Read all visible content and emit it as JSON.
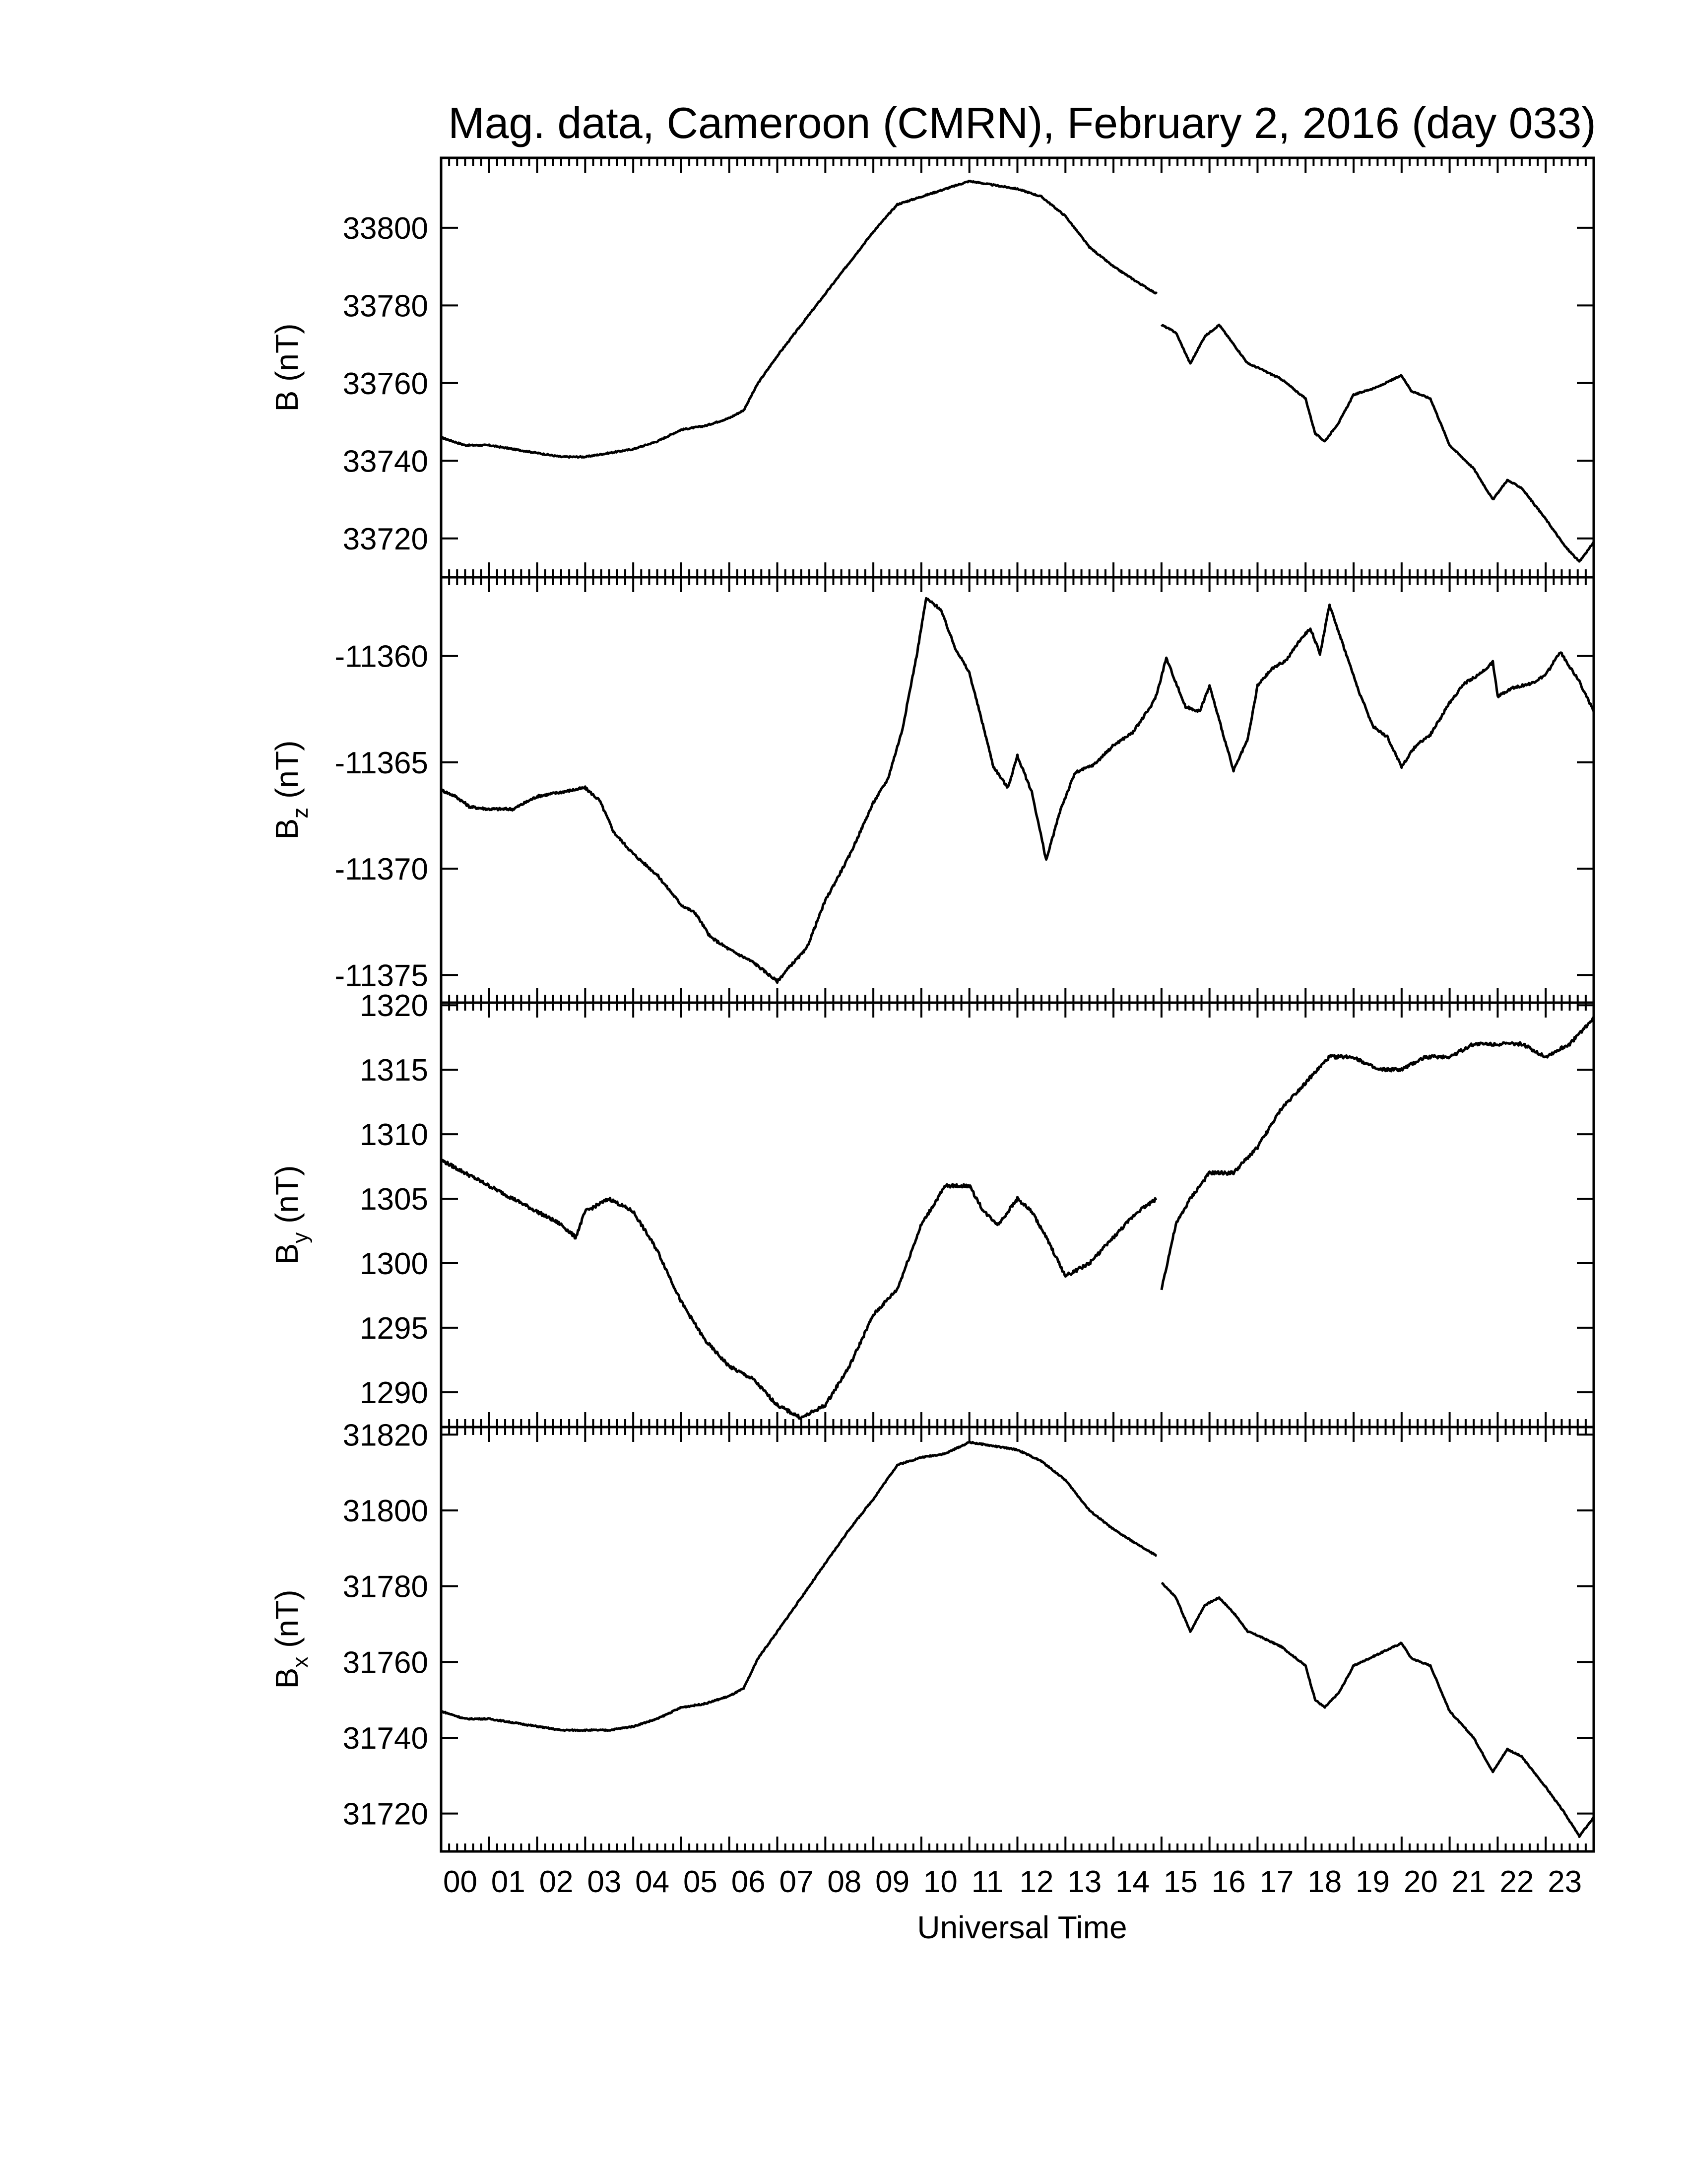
{
  "title": "Mag. data, Cameroon (CMRN), February 2, 2016 (day 033)",
  "xlabel": "Universal Time",
  "x_ticks": [
    "00",
    "01",
    "02",
    "03",
    "04",
    "05",
    "06",
    "07",
    "08",
    "09",
    "10",
    "11",
    "12",
    "13",
    "14",
    "15",
    "16",
    "17",
    "18",
    "19",
    "20",
    "21",
    "22",
    "23"
  ],
  "chart_data": [
    {
      "type": "line",
      "ylabel": "B (nT)",
      "ylabel_main": "B",
      "ylabel_sub": "",
      "ylabel_unit": " (nT)",
      "ylim": [
        33710,
        33818
      ],
      "yticks": [
        33720,
        33740,
        33760,
        33780,
        33800
      ],
      "gap_at_hour": 14.9,
      "x": [
        0,
        0.5,
        1,
        1.5,
        2,
        2.5,
        3,
        3.5,
        4,
        4.5,
        5,
        5.5,
        6,
        6.3,
        6.6,
        7,
        7.5,
        8,
        8.5,
        9,
        9.5,
        10,
        10.5,
        11,
        11.5,
        12,
        12.5,
        13,
        13.5,
        14,
        14.5,
        14.9,
        15,
        15.3,
        15.6,
        15.9,
        16.2,
        16.5,
        16.8,
        17,
        17.5,
        18,
        18.2,
        18.4,
        18.7,
        19,
        19.5,
        20,
        20.2,
        20.6,
        21,
        21.5,
        21.9,
        22.2,
        22.5,
        23,
        23.4,
        23.7,
        24
      ],
      "values": [
        33746,
        33744,
        33744,
        33743,
        33742,
        33741,
        33741,
        33742,
        33743,
        33745,
        33748,
        33749,
        33751,
        33753,
        33760,
        33767,
        33775,
        33783,
        33791,
        33799,
        33806,
        33808,
        33810,
        33812,
        33811,
        33810,
        33808,
        33803,
        33795,
        33790,
        33786,
        33783,
        33775,
        33773,
        33765,
        33772,
        33775,
        33770,
        33765,
        33764,
        33761,
        33756,
        33747,
        33745,
        33750,
        33757,
        33759,
        33762,
        33758,
        33756,
        33744,
        33738,
        33730,
        33735,
        33733,
        33725,
        33718,
        33714,
        33719
      ]
    },
    {
      "type": "line",
      "ylabel": "Bz (nT)",
      "ylabel_main": "B",
      "ylabel_sub": "z",
      "ylabel_unit": " (nT)",
      "ylim": [
        -11376.3,
        -11356.3
      ],
      "yticks": [
        -11375,
        -11370,
        -11365,
        -11360
      ],
      "x": [
        0,
        0.3,
        0.6,
        1,
        1.5,
        2,
        2.5,
        3,
        3.3,
        3.6,
        4,
        4.5,
        5,
        5.3,
        5.6,
        6,
        6.5,
        7,
        7.3,
        7.6,
        8,
        8.5,
        9,
        9.3,
        9.6,
        9.9,
        10.1,
        10.4,
        10.7,
        11,
        11.3,
        11.5,
        11.8,
        12,
        12.3,
        12.6,
        12.9,
        13.2,
        13.6,
        14,
        14.4,
        14.8,
        14.9,
        15.1,
        15.5,
        15.8,
        16,
        16.3,
        16.5,
        16.8,
        17,
        17.3,
        17.6,
        17.9,
        18.1,
        18.3,
        18.5,
        18.8,
        19.1,
        19.4,
        19.7,
        20,
        20.3,
        20.6,
        21,
        21.3,
        21.6,
        21.9,
        22,
        22.3,
        22.7,
        23,
        23.3,
        23.7,
        24
      ],
      "values": [
        -11366.3,
        -11366.6,
        -11367.1,
        -11367.2,
        -11367.2,
        -11366.6,
        -11366.4,
        -11366.2,
        -11366.8,
        -11368.3,
        -11369.3,
        -11370.3,
        -11371.7,
        -11372.1,
        -11373.2,
        -11373.8,
        -11374.4,
        -11375.3,
        -11374.5,
        -11373.8,
        -11371.5,
        -11369.4,
        -11366.9,
        -11365.8,
        -11363.5,
        -11360.0,
        -11357.3,
        -11357.8,
        -11359.6,
        -11360.8,
        -11363.4,
        -11365.2,
        -11366.2,
        -11364.7,
        -11366.4,
        -11369.6,
        -11367.2,
        -11365.5,
        -11365.1,
        -11364.2,
        -11363.6,
        -11362.3,
        -11361.8,
        -11360.1,
        -11362.4,
        -11362.6,
        -11361.4,
        -11363.8,
        -11365.4,
        -11363.9,
        -11361.4,
        -11360.6,
        -11360.2,
        -11359.2,
        -11358.7,
        -11359.9,
        -11357.6,
        -11359.6,
        -11361.6,
        -11363.3,
        -11363.8,
        -11365.2,
        -11364.2,
        -11363.7,
        -11362.2,
        -11361.3,
        -11360.9,
        -11360.3,
        -11361.9,
        -11361.5,
        -11361.3,
        -11360.9,
        -11359.8,
        -11361.2,
        -11362.6
      ]
    },
    {
      "type": "line",
      "ylabel": "By (nT)",
      "ylabel_main": "B",
      "ylabel_sub": "y",
      "ylabel_unit": " (nT)",
      "ylim": [
        1287.3,
        1320.2
      ],
      "yticks": [
        1290,
        1295,
        1300,
        1305,
        1310,
        1315,
        1320
      ],
      "gap_at_hour": 14.9,
      "x": [
        0,
        0.5,
        1,
        1.5,
        2,
        2.5,
        2.8,
        3,
        3.5,
        4,
        4.5,
        5,
        5.5,
        6,
        6.5,
        7,
        7.5,
        8,
        8.5,
        9,
        9.5,
        10,
        10.5,
        11,
        11.3,
        11.6,
        12,
        12.3,
        12.6,
        13,
        13.5,
        14,
        14.5,
        14.9,
        15,
        15.3,
        15.6,
        16,
        16.5,
        17,
        17.5,
        18,
        18.5,
        19,
        19.5,
        20,
        20.5,
        21,
        21.5,
        22,
        22.5,
        23,
        23.5,
        24
      ],
      "values": [
        1308,
        1307,
        1306,
        1305,
        1304,
        1303,
        1302,
        1304,
        1305,
        1304,
        1301,
        1297,
        1294,
        1292,
        1291,
        1289,
        1288,
        1289,
        1292,
        1296,
        1298,
        1303,
        1306,
        1306,
        1304,
        1303,
        1305,
        1304,
        1302,
        1299,
        1300,
        1302,
        1304,
        1305,
        1298,
        1303,
        1305,
        1307,
        1307,
        1309,
        1312,
        1314,
        1316,
        1316,
        1315,
        1315,
        1316,
        1316,
        1317,
        1317,
        1317,
        1316,
        1317,
        1319
      ]
    },
    {
      "type": "line",
      "ylabel": "Bx (nT)",
      "ylabel_main": "B",
      "ylabel_sub": "x",
      "ylabel_unit": " (nT)",
      "ylim": [
        31710,
        31822
      ],
      "yticks": [
        31720,
        31740,
        31760,
        31780,
        31800,
        31820
      ],
      "gap_at_hour": 14.9,
      "x": [
        0,
        0.5,
        1,
        1.5,
        2,
        2.5,
        3,
        3.5,
        4,
        4.5,
        5,
        5.5,
        6,
        6.3,
        6.6,
        7,
        7.5,
        8,
        8.5,
        9,
        9.5,
        10,
        10.5,
        11,
        11.5,
        12,
        12.5,
        13,
        13.5,
        14,
        14.5,
        14.9,
        15,
        15.3,
        15.6,
        15.9,
        16.2,
        16.5,
        16.8,
        17,
        17.5,
        18,
        18.2,
        18.4,
        18.7,
        19,
        19.5,
        20,
        20.2,
        20.6,
        21,
        21.5,
        21.9,
        22.2,
        22.5,
        23,
        23.4,
        23.7,
        24
      ],
      "values": [
        31747,
        31745,
        31745,
        31744,
        31743,
        31742,
        31742,
        31742,
        31743,
        31745,
        31748,
        31749,
        31751,
        31753,
        31761,
        31768,
        31777,
        31786,
        31795,
        31803,
        31812,
        31814,
        31815,
        31818,
        31817,
        31816,
        31813,
        31808,
        31800,
        31795,
        31791,
        31788,
        31781,
        31777,
        31768,
        31775,
        31777,
        31773,
        31768,
        31767,
        31764,
        31759,
        31750,
        31748,
        31752,
        31759,
        31762,
        31765,
        31761,
        31759,
        31747,
        31740,
        31731,
        31737,
        31735,
        31727,
        31720,
        31714,
        31719
      ]
    }
  ]
}
